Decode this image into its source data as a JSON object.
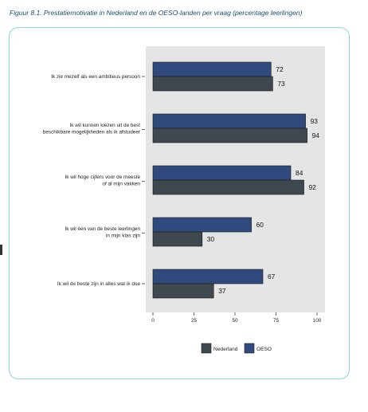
{
  "figure_title": "Figuur 8.1.   Prestatiemotivatie in Nederland en de OESO-landen per vraag (percentage leerlingen)",
  "colors": {
    "oeso": "#314a7e",
    "nederland": "#3f474f",
    "plot_bg": "#e5e5e5",
    "frame": "#8fd3e8"
  },
  "chart_data": {
    "type": "bar",
    "orientation": "horizontal",
    "title": "Prestatiemotivatie in Nederland en de OESO-landen per vraag (percentage leerlingen)",
    "categories": [
      [
        "Ik zie mezelf als een ambitieus persoon"
      ],
      [
        "Ik wil kunnen kiezen uit de best",
        "beschikbare mogelijkheden als ik afstudeer"
      ],
      [
        "Ik wil hoge cijfers voor de meeste",
        "of al mijn vakken"
      ],
      [
        "Ik wil één van de beste leerlingen",
        "in mijn klas zijn"
      ],
      [
        "Ik wil de beste zijn in alles wat ik doe"
      ]
    ],
    "series": [
      {
        "name": "OESO",
        "values": [
          72,
          93,
          84,
          60,
          67
        ]
      },
      {
        "name": "Nederland",
        "values": [
          73,
          94,
          92,
          30,
          37
        ]
      }
    ],
    "xlim": [
      0,
      100
    ],
    "ticks": [
      0,
      25,
      50,
      75,
      100
    ],
    "tick_labels": [
      "0",
      "25",
      "50",
      "75",
      "100"
    ],
    "legend": [
      "Nederland",
      "OESO"
    ],
    "legend_position": "bottom",
    "grid": false
  }
}
